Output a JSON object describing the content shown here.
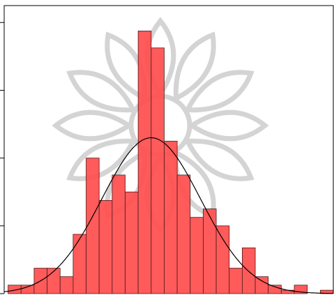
{
  "chart_data": {
    "type": "bar",
    "title": "",
    "xlabel": "",
    "ylabel": "",
    "ylim": [
      0,
      17
    ],
    "bins": [
      {
        "x0": 0,
        "x1": 1,
        "value": 0.5
      },
      {
        "x0": 1,
        "x1": 2,
        "value": 0.5
      },
      {
        "x0": 2,
        "x1": 3,
        "value": 1.5
      },
      {
        "x0": 3,
        "x1": 4,
        "value": 1.5
      },
      {
        "x0": 4,
        "x1": 5,
        "value": 1.0
      },
      {
        "x0": 5,
        "x1": 6,
        "value": 3.5
      },
      {
        "x0": 6,
        "x1": 7,
        "value": 8.0
      },
      {
        "x0": 7,
        "x1": 8,
        "value": 5.5
      },
      {
        "x0": 8,
        "x1": 9,
        "value": 7.0
      },
      {
        "x0": 9,
        "x1": 10,
        "value": 6.0
      },
      {
        "x0": 10,
        "x1": 11,
        "value": 15.5
      },
      {
        "x0": 11,
        "x1": 12,
        "value": 14.5
      },
      {
        "x0": 12,
        "x1": 13,
        "value": 9.0
      },
      {
        "x0": 13,
        "x1": 14,
        "value": 7.0
      },
      {
        "x0": 14,
        "x1": 15,
        "value": 4.5
      },
      {
        "x0": 15,
        "x1": 16,
        "value": 5.0
      },
      {
        "x0": 16,
        "x1": 17,
        "value": 4.0
      },
      {
        "x0": 17,
        "x1": 18,
        "value": 1.5
      },
      {
        "x0": 18,
        "x1": 19,
        "value": 2.7
      },
      {
        "x0": 19,
        "x1": 20,
        "value": 1.0
      },
      {
        "x0": 20,
        "x1": 21,
        "value": 0.5
      },
      {
        "x0": 21,
        "x1": 22,
        "value": 0.2
      },
      {
        "x0": 22,
        "x1": 23,
        "value": 0.5
      },
      {
        "x0": 23,
        "x1": 24,
        "value": 0.0
      },
      {
        "x0": 24,
        "x1": 25,
        "value": 0.2
      }
    ],
    "xlim": [
      -0.3,
      25
    ],
    "yticks": [
      0,
      4,
      8,
      12,
      16
    ],
    "normal_fit": {
      "mean": 11.0,
      "sd": 3.8,
      "peak": 9.2
    },
    "grid": false,
    "colors": {
      "bar": "#ff4d4d",
      "bar_edge": "#4d1a1a",
      "curve": "#000000",
      "watermark": "#d4d4d4"
    },
    "watermark_icon": "mandala-watermark-icon"
  }
}
